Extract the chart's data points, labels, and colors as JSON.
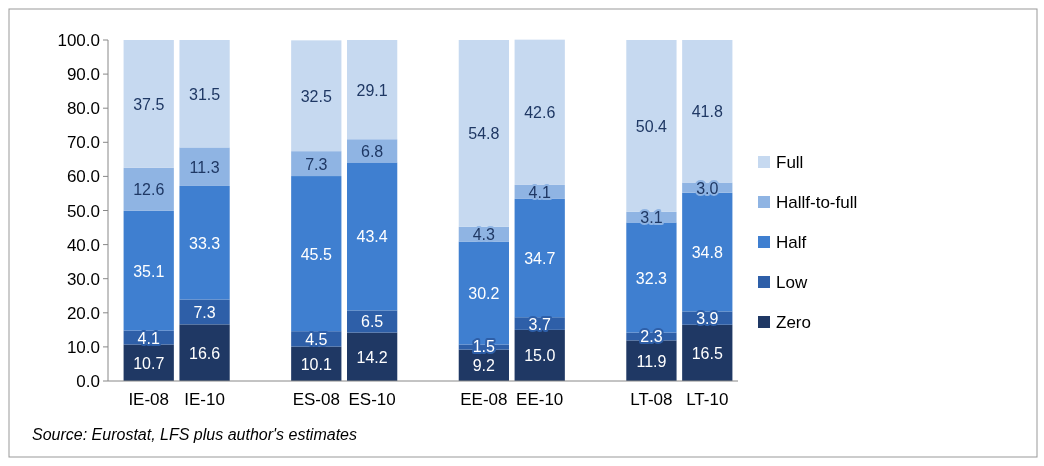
{
  "chart_data": {
    "type": "bar",
    "stacked": true,
    "categories": [
      "IE-08",
      "IE-10",
      null,
      "ES-08",
      "ES-10",
      null,
      "EE-08",
      "EE-10",
      null,
      "LT-08",
      "LT-10"
    ],
    "ylim": [
      0,
      100
    ],
    "yticks": [
      {
        "value": 0,
        "label": "0.0"
      },
      {
        "value": 10,
        "label": "10.0"
      },
      {
        "value": 20,
        "label": "20.0"
      },
      {
        "value": 30,
        "label": "30.0"
      },
      {
        "value": 40,
        "label": "40.0"
      },
      {
        "value": 50,
        "label": "50.0"
      },
      {
        "value": 60,
        "label": "60.0"
      },
      {
        "value": 70,
        "label": "70.0"
      },
      {
        "value": 80,
        "label": "80.0"
      },
      {
        "value": 90,
        "label": "90.0"
      },
      {
        "value": 100,
        "label": "100.0"
      }
    ],
    "grid": false,
    "legend": "right",
    "series": [
      {
        "name": "Zero",
        "color": "#1f3864",
        "values": [
          10.7,
          16.6,
          null,
          10.1,
          14.2,
          null,
          9.2,
          15.0,
          null,
          11.9,
          16.5
        ],
        "value_labels": [
          "10.7",
          "16.6",
          null,
          "10.1",
          "14.2",
          null,
          "9.2",
          "15.0",
          null,
          "11.9",
          "16.5"
        ]
      },
      {
        "name": "Low",
        "color": "#2e5fa8",
        "values": [
          4.1,
          7.3,
          null,
          4.5,
          6.5,
          null,
          1.5,
          3.7,
          null,
          2.3,
          3.9
        ],
        "value_labels": [
          "4.1",
          "7.3",
          null,
          "4.5",
          "6.5",
          null,
          "1.5",
          "3.7",
          null,
          "2.3",
          "3.9"
        ]
      },
      {
        "name": "Half",
        "color": "#3f7fd0",
        "values": [
          35.1,
          33.3,
          null,
          45.5,
          43.4,
          null,
          30.2,
          34.7,
          null,
          32.3,
          34.8
        ],
        "value_labels": [
          "35.1",
          "33.3",
          null,
          "45.5",
          "43.4",
          null,
          "30.2",
          "34.7",
          null,
          "32.3",
          "34.8"
        ]
      },
      {
        "name": "Hallf-to-full",
        "color": "#8fb4e3",
        "values": [
          12.6,
          11.3,
          null,
          7.3,
          6.8,
          null,
          4.3,
          4.1,
          null,
          3.1,
          3.0
        ],
        "value_labels": [
          "12.6",
          "11.3",
          null,
          "7.3",
          "6.8",
          null,
          "4.3",
          "4.1",
          null,
          "3.1",
          "3.0"
        ]
      },
      {
        "name": "Full",
        "color": "#c6d9f0",
        "values": [
          37.5,
          31.5,
          null,
          32.5,
          29.1,
          null,
          54.8,
          42.6,
          null,
          50.4,
          41.8
        ],
        "value_labels": [
          "37.5",
          "31.5",
          null,
          "32.5",
          "29.1",
          null,
          "54.8",
          "42.6",
          null,
          "50.4",
          "41.8"
        ]
      }
    ],
    "annotations": [
      "Source: Eurostat, LFS plus author's estimates"
    ]
  }
}
